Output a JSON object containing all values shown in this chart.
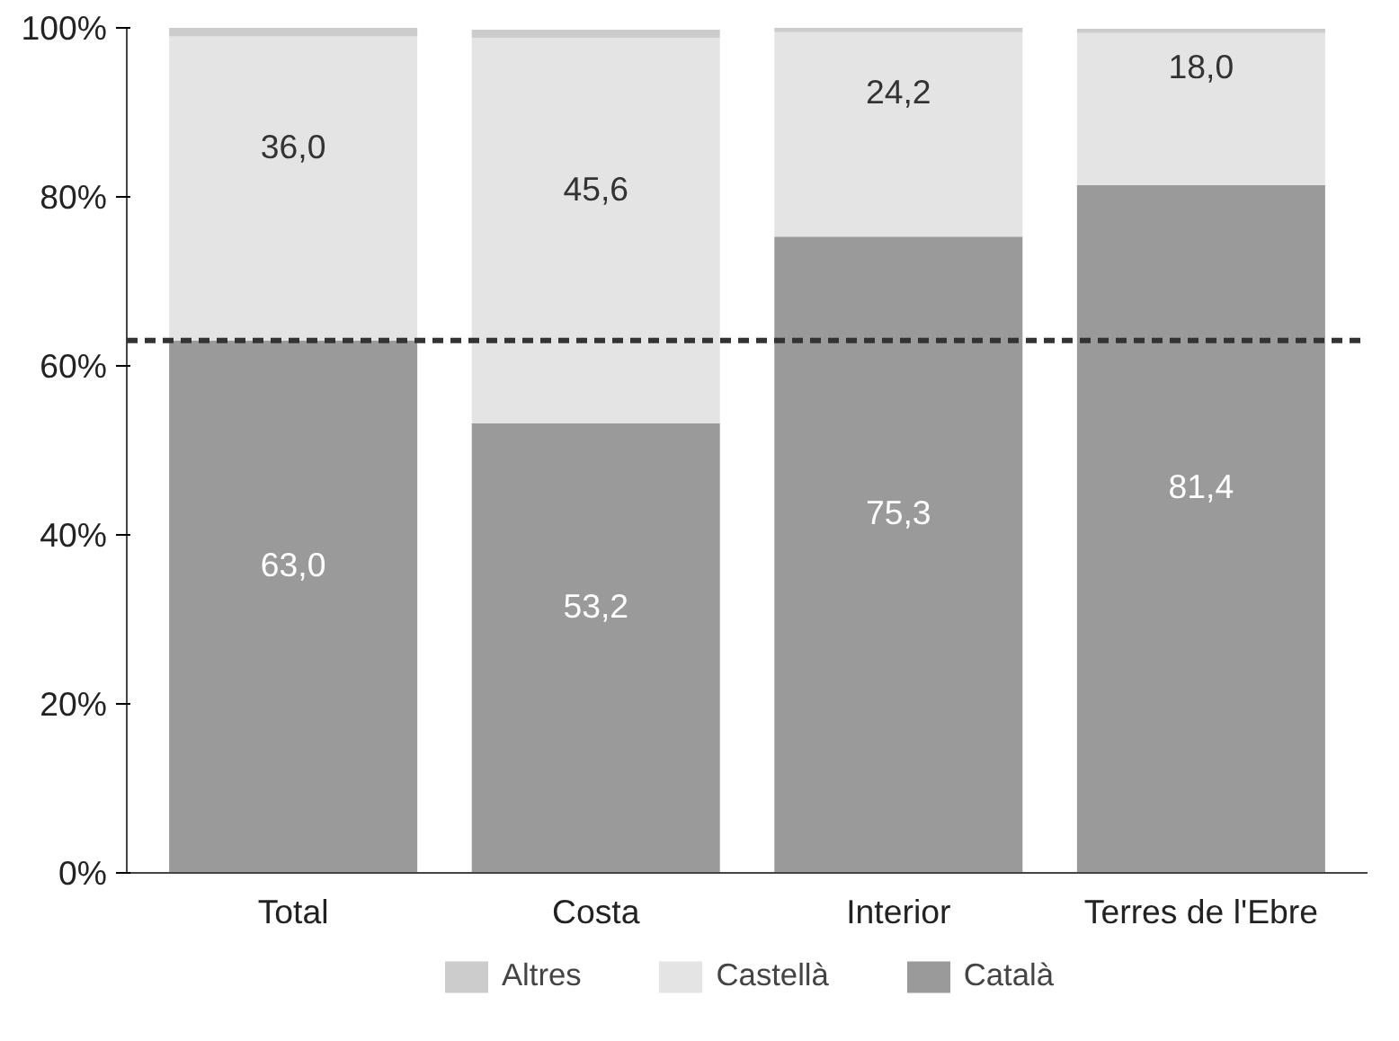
{
  "chart_data": {
    "type": "bar",
    "stacked": true,
    "categories": [
      "Total",
      "Costa",
      "Interior",
      "Terres de l'Ebre"
    ],
    "series": [
      {
        "name": "Català",
        "color": "#9a9a9a",
        "values": [
          63.0,
          53.2,
          75.3,
          81.4
        ],
        "value_labels": [
          "63,0",
          "53,2",
          "75,3",
          "81,4"
        ]
      },
      {
        "name": "Castellà",
        "color": "#e4e4e4",
        "values": [
          36.0,
          45.6,
          24.2,
          18.0
        ],
        "value_labels": [
          "36,0",
          "45,6",
          "24,2",
          "18,0"
        ]
      },
      {
        "name": "Altres",
        "color": "#cccccc",
        "values": [
          1,
          1,
          0.5,
          0.5
        ]
      }
    ],
    "ylim": [
      0,
      100
    ],
    "yticks": [
      {
        "value": 0,
        "label": "0%"
      },
      {
        "value": 20,
        "label": "20%"
      },
      {
        "value": 40,
        "label": "40%"
      },
      {
        "value": 60,
        "label": "60%"
      },
      {
        "value": 80,
        "label": "80%"
      },
      {
        "value": 100,
        "label": "100%"
      }
    ],
    "ref_lines": [
      {
        "axis": "y",
        "value": 63.0,
        "color": "#333333",
        "line_style": "dashed"
      }
    ],
    "grid": false,
    "legend": "bottom"
  }
}
